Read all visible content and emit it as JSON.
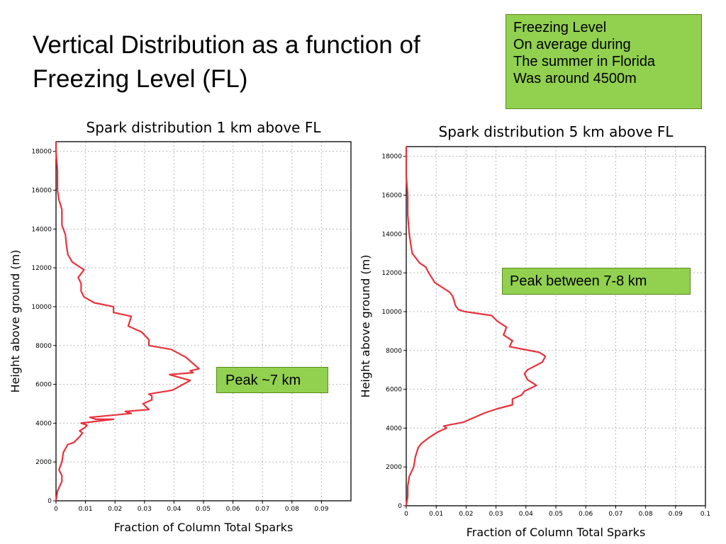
{
  "slide": {
    "title_lines": [
      "Vertical Distribution as a function of",
      "Freezing Level (FL)"
    ],
    "note_lines": [
      "Freezing Level",
      "On average during",
      "The summer in Florida",
      "Was around 4500m"
    ],
    "peak_left": "Peak ~7 km",
    "peak_right": "Peak between 7-8 km",
    "colors": {
      "callout": "#92d050",
      "series": "#e8323c"
    }
  },
  "chart_data": [
    {
      "type": "line",
      "title": "Spark distribution 1 km above FL",
      "xlabel": "Fraction of Column Total Sparks",
      "ylabel": "Height above ground (m)",
      "xlim": [
        0,
        0.1
      ],
      "ylim": [
        0,
        18500
      ],
      "x_ticks": [
        0,
        0.01,
        0.02,
        0.03,
        0.04,
        0.05,
        0.06,
        0.07,
        0.08,
        0.09
      ],
      "x_tick_labels": [
        "0",
        "0.01",
        "0.02",
        "0.03",
        "0.04",
        "0.05",
        "0.06",
        "0.07",
        "0.08",
        "0.09"
      ],
      "y_ticks": [
        0,
        2000,
        4000,
        6000,
        8000,
        10000,
        12000,
        14000,
        16000,
        18000
      ],
      "y_tick_labels": [
        "0",
        "2000",
        "4000",
        "6000",
        "8000",
        "10000",
        "12000",
        "14000",
        "16000",
        "18000"
      ],
      "grid": true,
      "series": [
        {
          "x": [
            0.0,
            0.0005,
            0.002,
            0.002,
            0.001,
            0.002,
            0.0025,
            0.004,
            0.006,
            0.008,
            0.009,
            0.008,
            0.01,
            0.0105,
            0.0085,
            0.0195,
            0.0135,
            0.0115,
            0.0255,
            0.0235,
            0.0315,
            0.0295,
            0.0325,
            0.0325,
            0.0315,
            0.0395,
            0.0455,
            0.0385,
            0.0465,
            0.0455,
            0.0485,
            0.047,
            0.044,
            0.039,
            0.0315,
            0.0315,
            0.029,
            0.0245,
            0.0255,
            0.0195,
            0.0195,
            0.013,
            0.0095,
            0.0085,
            0.0085,
            0.0075,
            0.0095,
            0.0085,
            0.0055,
            0.004,
            0.0035,
            0.0032,
            0.002,
            0.002,
            0.001,
            0.0005,
            0.0005,
            0.0,
            0.0
          ],
          "y": [
            0,
            500,
            1000,
            1300,
            1600,
            2000,
            2500,
            2900,
            3000,
            3300,
            3500,
            3600,
            3800,
            3900,
            4000,
            4200,
            4200,
            4300,
            4500,
            4600,
            4700,
            5000,
            5200,
            5400,
            5500,
            5700,
            6200,
            6500,
            6600,
            6700,
            6800,
            7000,
            7400,
            7800,
            8000,
            8300,
            8700,
            9000,
            9500,
            9700,
            10000,
            10200,
            10500,
            10800,
            11200,
            11500,
            11900,
            12000,
            12300,
            12700,
            13200,
            13700,
            14200,
            15000,
            15500,
            16000,
            17000,
            18000,
            18500
          ]
        }
      ]
    },
    {
      "type": "line",
      "title": "Spark distribution 5 km above FL",
      "xlabel": "Fraction of Column Total Sparks",
      "ylabel": "Height above ground (m)",
      "xlim": [
        0,
        0.1
      ],
      "ylim": [
        0,
        18500
      ],
      "x_ticks": [
        0,
        0.01,
        0.02,
        0.03,
        0.04,
        0.05,
        0.06,
        0.07,
        0.08,
        0.09,
        0.1
      ],
      "x_tick_labels": [
        "0",
        "0.01",
        "0.02",
        "0.03",
        "0.04",
        "0.05",
        "0.06",
        "0.07",
        "0.08",
        "0.09",
        "0.1"
      ],
      "y_ticks": [
        0,
        2000,
        4000,
        6000,
        8000,
        10000,
        12000,
        14000,
        16000,
        18000
      ],
      "y_tick_labels": [
        "0",
        "2000",
        "4000",
        "6000",
        "8000",
        "10000",
        "12000",
        "14000",
        "16000",
        "18000"
      ],
      "grid": true,
      "series": [
        {
          "x": [
            0.0,
            0.0005,
            0.0005,
            0.001,
            0.0025,
            0.003,
            0.004,
            0.005,
            0.0075,
            0.0105,
            0.0135,
            0.0125,
            0.0155,
            0.019,
            0.022,
            0.0265,
            0.0305,
            0.0355,
            0.0355,
            0.0385,
            0.0395,
            0.0435,
            0.0405,
            0.0395,
            0.0405,
            0.0455,
            0.0465,
            0.0445,
            0.0345,
            0.0355,
            0.0325,
            0.0335,
            0.0305,
            0.0285,
            0.0195,
            0.0175,
            0.0165,
            0.0155,
            0.0145,
            0.0095,
            0.0075,
            0.0065,
            0.0045,
            0.003,
            0.002,
            0.0015,
            0.001,
            0.0005,
            0.0005,
            0.0,
            0.0
          ],
          "y": [
            0,
            500,
            1000,
            1500,
            2000,
            2500,
            3000,
            3200,
            3500,
            3800,
            4000,
            4100,
            4200,
            4300,
            4500,
            4800,
            5000,
            5200,
            5500,
            5700,
            5900,
            6200,
            6500,
            6800,
            7000,
            7400,
            7700,
            7900,
            8200,
            8500,
            8800,
            9200,
            9500,
            9800,
            10000,
            10100,
            10300,
            10800,
            11000,
            11500,
            12000,
            12300,
            12500,
            12800,
            13000,
            13500,
            14000,
            15000,
            16000,
            17000,
            18500
          ]
        }
      ]
    }
  ]
}
